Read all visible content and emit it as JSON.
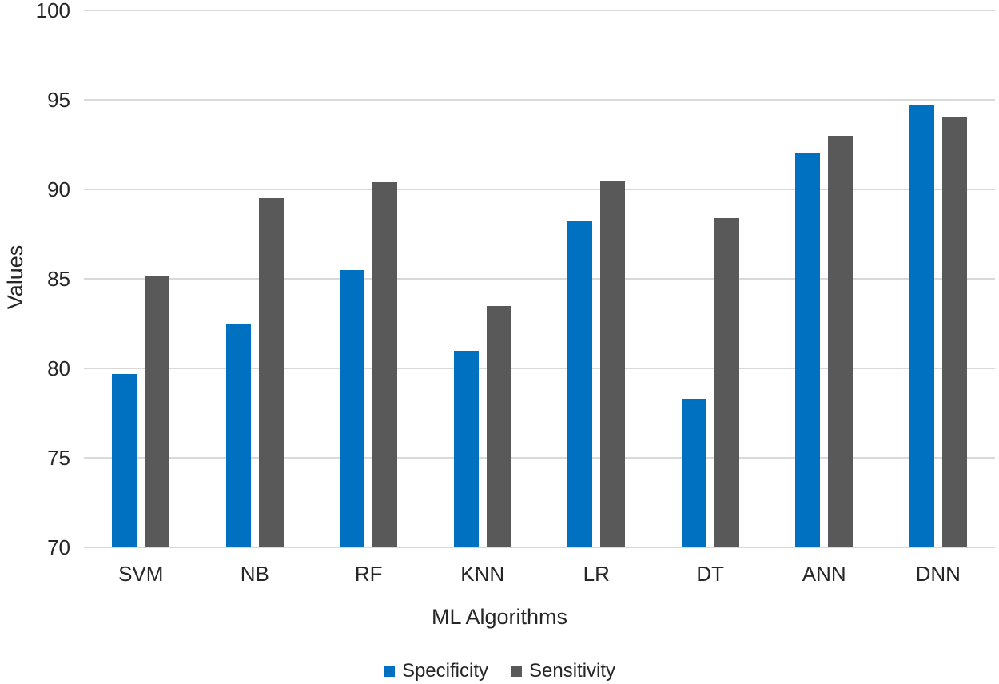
{
  "chart_data": {
    "type": "bar",
    "title": "",
    "categories": [
      "SVM",
      "NB",
      "RF",
      "KNN",
      "LR",
      "DT",
      "ANN",
      "DNN"
    ],
    "series": [
      {
        "name": "Specificity",
        "color": "#0071c1",
        "values": [
          79.7,
          82.5,
          85.5,
          81.0,
          88.2,
          78.3,
          92.0,
          94.7
        ]
      },
      {
        "name": "Sensitivity",
        "color": "#595959",
        "values": [
          85.2,
          89.5,
          90.4,
          83.5,
          90.5,
          88.4,
          93.0,
          94.0
        ]
      }
    ],
    "xlabel": "ML Algorithms",
    "ylabel": "Values",
    "ylim": [
      70,
      100
    ],
    "yticks": [
      70,
      75,
      80,
      85,
      90,
      95,
      100
    ],
    "grid": true,
    "gridline_color": "#d9d9d9",
    "legend_position": "bottom"
  }
}
